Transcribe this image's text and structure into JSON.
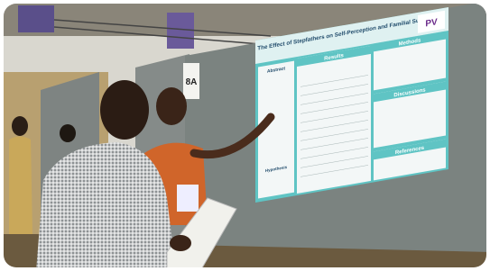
{
  "poster": {
    "title": "The Effect of Stepfathers on Self-Perception and Familial Support",
    "logo": "PV",
    "sections": {
      "abstract": "Abstract",
      "hypothesis": "Hypothesis",
      "results": "Results",
      "methods": "Methods",
      "discussions": "Discussions",
      "references": "References"
    }
  },
  "sign": "8A"
}
